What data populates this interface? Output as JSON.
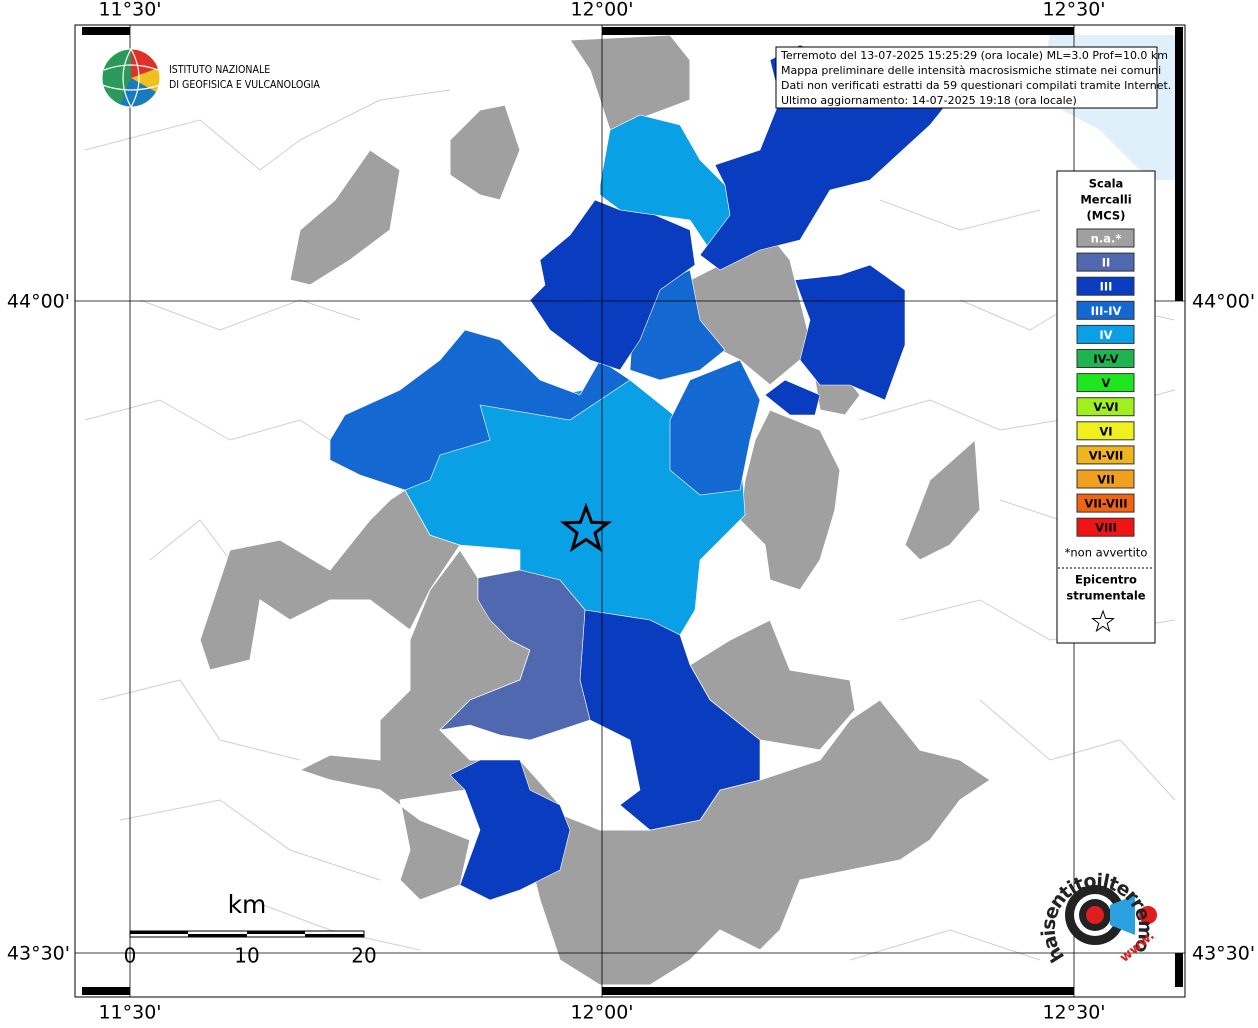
{
  "longitude_labels": [
    "11°30'",
    "12°00'",
    "12°30'"
  ],
  "latitude_labels": [
    "44°00'",
    "43°30'"
  ],
  "logo": {
    "line1": "ISTITUTO NAZIONALE",
    "line2": "DI GEOFISICA E VULCANOLOGIA"
  },
  "info_box": [
    "Terremoto del 13-07-2025 15:25:29 (ora locale) ML=3.0 Prof=10.0 km",
    "Mappa preliminare delle intensità macrosismiche stimate nei comuni",
    "Dati non verificati estratti da 59 questionari compilati tramite Internet.",
    "Ultimo aggiornamento: 14-07-2025 19:18 (ora locale)"
  ],
  "legend": {
    "title": [
      "Scala",
      "Mercalli",
      "(MCS)"
    ],
    "classes": [
      {
        "label": "n.a.*",
        "color": "#a0a0a0",
        "text_color": "#ffffff"
      },
      {
        "label": "II",
        "color": "#5068b0",
        "text_color": "#ffffff"
      },
      {
        "label": "III",
        "color": "#0a3cc0",
        "text_color": "#ffffff"
      },
      {
        "label": "III-IV",
        "color": "#1468d2",
        "text_color": "#ffffff"
      },
      {
        "label": "IV",
        "color": "#0aa0e6",
        "text_color": "#ffffff"
      },
      {
        "label": "IV-V",
        "color": "#1eb450",
        "text_color": "#000000"
      },
      {
        "label": "V",
        "color": "#1ee61e",
        "text_color": "#000000"
      },
      {
        "label": "V-VI",
        "color": "#a0f01e",
        "text_color": "#000000"
      },
      {
        "label": "VI",
        "color": "#f0f01e",
        "text_color": "#000000"
      },
      {
        "label": "VI-VII",
        "color": "#f0b41e",
        "text_color": "#000000"
      },
      {
        "label": "VII",
        "color": "#f0a01e",
        "text_color": "#000000"
      },
      {
        "label": "VII-VIII",
        "color": "#f06414",
        "text_color": "#000000"
      },
      {
        "label": "VIII",
        "color": "#f01414",
        "text_color": "#000000"
      }
    ],
    "note": "*non avvertito",
    "epicenter": [
      "Epicentro",
      "strumentale"
    ]
  },
  "scale_bar": {
    "unit": "km",
    "labels": [
      "0",
      "10",
      "20"
    ]
  },
  "site_logo": {
    "name": "haisentitoilterremoto.it",
    "prefix": "www."
  }
}
